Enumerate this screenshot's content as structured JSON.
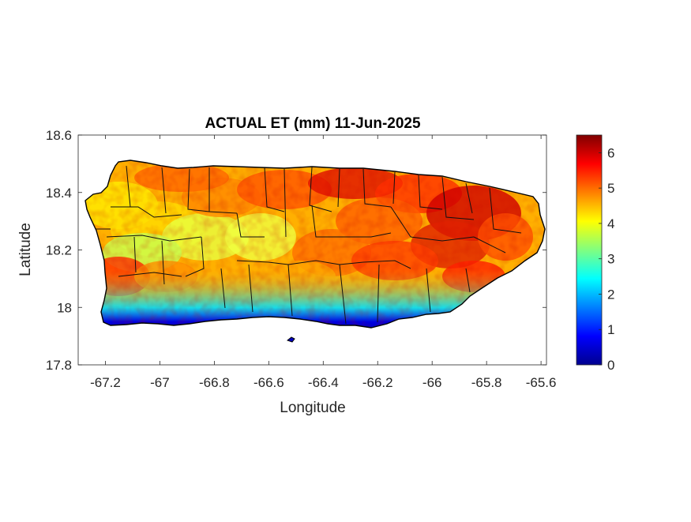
{
  "map": {
    "title": "ACTUAL ET (mm) 11-Jun-2025",
    "xlabel": "Longitude",
    "ylabel": "Latitude",
    "xlim": [
      -67.3,
      -65.58
    ],
    "ylim": [
      17.8,
      18.6
    ],
    "xticks": [
      -67.2,
      -67,
      -66.8,
      -66.6,
      -66.4,
      -66.2,
      -66,
      -65.8,
      -65.6
    ],
    "xtick_labels": [
      "-67.2",
      "-67",
      "-66.8",
      "-66.6",
      "-66.4",
      "-66.2",
      "-66",
      "-65.8",
      "-65.6"
    ],
    "yticks": [
      17.8,
      18,
      18.2,
      18.4,
      18.6
    ],
    "ytick_labels": [
      "17.8",
      "18",
      "18.2",
      "18.4",
      "18.6"
    ],
    "colormap": "jet",
    "colorbar": {
      "min": 0,
      "max": 6.5,
      "ticks": [
        0,
        1,
        2,
        3,
        4,
        5,
        6
      ],
      "tick_labels": [
        "0",
        "1",
        "2",
        "3",
        "4",
        "5",
        "6"
      ]
    },
    "region": "Puerto Rico",
    "outline_color": "#000000"
  }
}
